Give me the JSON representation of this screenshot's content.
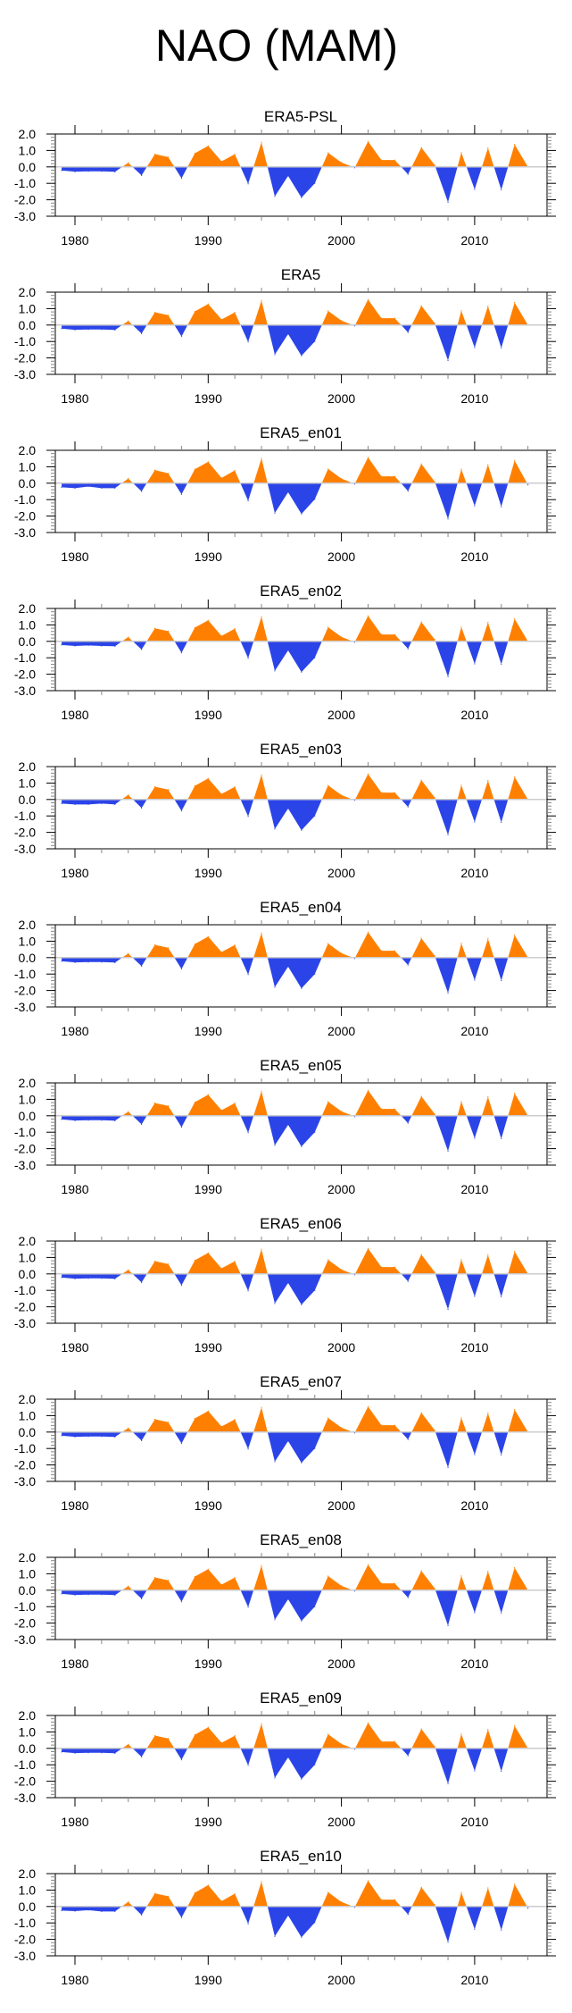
{
  "figure_title": "NAO (MAM)",
  "colors": {
    "positive": "#ff8000",
    "negative": "#2b44e8",
    "zero_line": "#cccccc",
    "axis": "#000000"
  },
  "chart_data": {
    "type": "area",
    "title": "NAO (MAM)",
    "xlabel": "",
    "ylabel": "",
    "xlim": [
      1978.5,
      2015.5
    ],
    "ylim": [
      -3.0,
      2.0
    ],
    "x_ticks": [
      1980,
      1990,
      2000,
      2010
    ],
    "x_tick_labels": [
      "1980",
      "1990",
      "2000",
      "2010"
    ],
    "y_ticks": [
      2.0,
      1.0,
      0.0,
      -1.0,
      -2.0,
      -3.0
    ],
    "y_tick_labels": [
      "2.0",
      "1.0",
      "0.0",
      "-1.0",
      "-2.0",
      "-3.0"
    ],
    "grid": false,
    "legend": "none",
    "x": [
      1979,
      1980,
      1981,
      1982,
      1983,
      1984,
      1985,
      1986,
      1987,
      1988,
      1989,
      1990,
      1991,
      1992,
      1993,
      1994,
      1995,
      1996,
      1997,
      1998,
      1999,
      2000,
      2001,
      2002,
      2003,
      2004,
      2005,
      2006,
      2007,
      2008,
      2009,
      2010,
      2011,
      2012,
      2013,
      2014
    ],
    "panels": [
      {
        "title": "ERA5-PSL",
        "values": [
          -0.22,
          -0.29,
          -0.27,
          -0.27,
          -0.3,
          0.25,
          -0.52,
          0.78,
          0.6,
          -0.7,
          0.83,
          1.28,
          0.34,
          0.77,
          -1.03,
          1.5,
          -1.8,
          -0.55,
          -1.87,
          -1.0,
          0.86,
          0.27,
          -0.05,
          1.55,
          0.42,
          0.42,
          -0.45,
          1.18,
          0.12,
          -2.15,
          0.87,
          -1.37,
          1.15,
          -1.4,
          1.37,
          0.0
        ]
      },
      {
        "title": "ERA5",
        "values": [
          -0.22,
          -0.29,
          -0.27,
          -0.27,
          -0.3,
          0.25,
          -0.52,
          0.78,
          0.6,
          -0.7,
          0.83,
          1.28,
          0.34,
          0.77,
          -1.03,
          1.5,
          -1.8,
          -0.55,
          -1.87,
          -1.0,
          0.86,
          0.27,
          -0.05,
          1.55,
          0.42,
          0.42,
          -0.45,
          1.18,
          0.12,
          -2.15,
          0.87,
          -1.37,
          1.15,
          -1.4,
          1.37,
          0.0
        ]
      },
      {
        "title": "ERA5_en01",
        "values": [
          -0.25,
          -0.3,
          -0.2,
          -0.3,
          -0.3,
          0.28,
          -0.5,
          0.8,
          0.6,
          -0.68,
          0.85,
          1.3,
          0.32,
          0.78,
          -1.08,
          1.52,
          -1.82,
          -0.55,
          -1.87,
          -0.98,
          0.87,
          0.28,
          -0.05,
          1.57,
          0.42,
          0.42,
          -0.48,
          1.17,
          0.1,
          -2.17,
          0.85,
          -1.38,
          1.13,
          -1.43,
          1.38,
          -0.1
        ]
      },
      {
        "title": "ERA5_en02",
        "values": [
          -0.22,
          -0.28,
          -0.25,
          -0.28,
          -0.3,
          0.26,
          -0.5,
          0.79,
          0.62,
          -0.7,
          0.84,
          1.28,
          0.33,
          0.77,
          -1.03,
          1.5,
          -1.8,
          -0.55,
          -1.87,
          -1.0,
          0.86,
          0.27,
          -0.05,
          1.55,
          0.42,
          0.42,
          -0.45,
          1.18,
          0.12,
          -2.15,
          0.87,
          -1.37,
          1.15,
          -1.4,
          1.37,
          0.0
        ]
      },
      {
        "title": "ERA5_en03",
        "values": [
          -0.25,
          -0.3,
          -0.3,
          -0.25,
          -0.3,
          0.28,
          -0.52,
          0.78,
          0.6,
          -0.7,
          0.83,
          1.28,
          0.34,
          0.77,
          -1.03,
          1.5,
          -1.8,
          -0.55,
          -1.87,
          -1.0,
          0.86,
          0.27,
          -0.05,
          1.55,
          0.42,
          0.42,
          -0.45,
          1.18,
          0.12,
          -2.15,
          0.87,
          -1.37,
          1.15,
          -1.4,
          1.37,
          0.0
        ]
      },
      {
        "title": "ERA5_en04",
        "values": [
          -0.22,
          -0.29,
          -0.27,
          -0.27,
          -0.3,
          0.25,
          -0.52,
          0.78,
          0.6,
          -0.7,
          0.83,
          1.28,
          0.34,
          0.77,
          -1.03,
          1.5,
          -1.8,
          -0.55,
          -1.87,
          -1.0,
          0.86,
          0.27,
          -0.05,
          1.55,
          0.42,
          0.42,
          -0.45,
          1.18,
          0.12,
          -2.15,
          0.87,
          -1.37,
          1.15,
          -1.4,
          1.37,
          0.0
        ]
      },
      {
        "title": "ERA5_en05",
        "values": [
          -0.22,
          -0.29,
          -0.27,
          -0.27,
          -0.3,
          0.25,
          -0.52,
          0.78,
          0.6,
          -0.7,
          0.83,
          1.28,
          0.34,
          0.77,
          -1.03,
          1.5,
          -1.8,
          -0.55,
          -1.87,
          -1.0,
          0.86,
          0.27,
          -0.05,
          1.55,
          0.42,
          0.42,
          -0.45,
          1.18,
          0.12,
          -2.15,
          0.87,
          -1.37,
          1.15,
          -1.4,
          1.37,
          0.0
        ]
      },
      {
        "title": "ERA5_en06",
        "values": [
          -0.22,
          -0.29,
          -0.27,
          -0.27,
          -0.3,
          0.25,
          -0.52,
          0.78,
          0.6,
          -0.7,
          0.83,
          1.28,
          0.34,
          0.77,
          -1.03,
          1.5,
          -1.8,
          -0.55,
          -1.87,
          -1.0,
          0.86,
          0.27,
          -0.05,
          1.55,
          0.42,
          0.42,
          -0.45,
          1.18,
          0.12,
          -2.15,
          0.87,
          -1.37,
          1.15,
          -1.4,
          1.37,
          0.0
        ]
      },
      {
        "title": "ERA5_en07",
        "values": [
          -0.22,
          -0.29,
          -0.27,
          -0.27,
          -0.3,
          0.25,
          -0.52,
          0.78,
          0.6,
          -0.7,
          0.83,
          1.28,
          0.34,
          0.77,
          -1.03,
          1.5,
          -1.8,
          -0.55,
          -1.87,
          -1.0,
          0.86,
          0.27,
          -0.05,
          1.55,
          0.42,
          0.42,
          -0.45,
          1.18,
          0.12,
          -2.15,
          0.87,
          -1.37,
          1.15,
          -1.4,
          1.37,
          0.0
        ]
      },
      {
        "title": "ERA5_en08",
        "values": [
          -0.22,
          -0.29,
          -0.27,
          -0.27,
          -0.3,
          0.25,
          -0.52,
          0.78,
          0.6,
          -0.7,
          0.83,
          1.28,
          0.34,
          0.77,
          -1.03,
          1.5,
          -1.8,
          -0.55,
          -1.87,
          -1.0,
          0.86,
          0.27,
          -0.05,
          1.55,
          0.42,
          0.42,
          -0.45,
          1.18,
          0.12,
          -2.15,
          0.87,
          -1.37,
          1.15,
          -1.4,
          1.37,
          0.0
        ]
      },
      {
        "title": "ERA5_en09",
        "values": [
          -0.22,
          -0.29,
          -0.27,
          -0.27,
          -0.3,
          0.25,
          -0.52,
          0.78,
          0.6,
          -0.7,
          0.83,
          1.28,
          0.34,
          0.77,
          -1.03,
          1.5,
          -1.8,
          -0.55,
          -1.87,
          -1.0,
          0.86,
          0.27,
          -0.05,
          1.55,
          0.42,
          0.42,
          -0.45,
          1.18,
          0.12,
          -2.15,
          0.87,
          -1.37,
          1.15,
          -1.4,
          1.37,
          0.0
        ]
      },
      {
        "title": "ERA5_en10",
        "values": [
          -0.25,
          -0.28,
          -0.22,
          -0.3,
          -0.3,
          0.28,
          -0.52,
          0.8,
          0.62,
          -0.68,
          0.84,
          1.3,
          0.33,
          0.78,
          -1.05,
          1.52,
          -1.82,
          -0.55,
          -1.87,
          -0.98,
          0.87,
          0.28,
          -0.05,
          1.57,
          0.42,
          0.42,
          -0.48,
          1.17,
          0.12,
          -2.17,
          0.85,
          -1.38,
          1.13,
          -1.43,
          1.36,
          -0.1
        ]
      }
    ]
  }
}
